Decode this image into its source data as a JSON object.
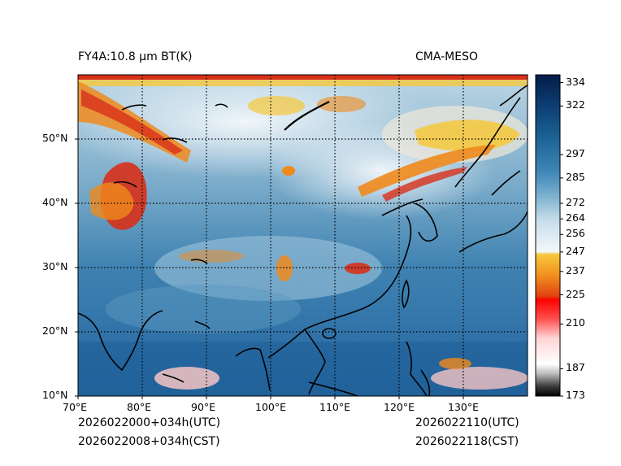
{
  "title_left": "FY4A:10.8 µm BT(K)",
  "title_right": "CMA-MESO",
  "init_utc": "2026022000+034h(UTC)",
  "init_cst": "2026022008+034h(CST)",
  "valid_utc": "2026022110(UTC)",
  "valid_cst": "2026022118(CST)",
  "lon_labels": [
    "70°E",
    "80°E",
    "90°E",
    "100°E",
    "110°E",
    "120°E",
    "130°E"
  ],
  "lat_labels": [
    "50°N",
    "40°N",
    "30°N",
    "20°N",
    "10°N"
  ],
  "colorbar": {
    "min": 173,
    "max": 338,
    "ticks": [
      "334",
      "322",
      "297",
      "285",
      "272",
      "264",
      "256",
      "247",
      "237",
      "225",
      "210",
      "187",
      "173"
    ],
    "tick_values": [
      334,
      322,
      297,
      285,
      272,
      264,
      256,
      247,
      237,
      225,
      210,
      187,
      173
    ]
  },
  "map_extent": {
    "lon_min": 70,
    "lon_max": 140,
    "lat_min": 10,
    "lat_max": 60
  },
  "colors": {
    "ocean_blue": "#2f6fa2",
    "deep_blue": "#1d5585",
    "cloud_white": "#eef4f8",
    "cloud_red": "#d8301a",
    "cloud_orange": "#f08a1c",
    "cloud_yellow": "#f6c83a",
    "border": "#000000"
  }
}
